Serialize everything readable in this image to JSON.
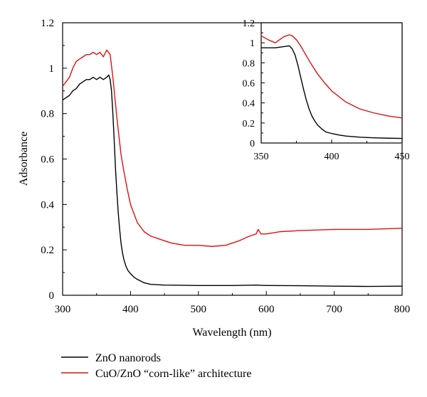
{
  "chart_data": [
    {
      "type": "line",
      "panel": "main",
      "title": "",
      "xlabel": "Wavelength (nm)",
      "ylabel": "Adsorbance",
      "xlim": [
        300,
        800
      ],
      "ylim": [
        0,
        1.2
      ],
      "xticks": [
        "300",
        "400",
        "500",
        "600",
        "700",
        "800"
      ],
      "yticks": [
        "0",
        "0.2",
        "0.4",
        "0.6",
        "0.8",
        "1",
        "1.2"
      ],
      "grid": false,
      "legend_placement": "bottom-left, below plot",
      "series": [
        {
          "name": "ZnO nanorods",
          "color": "#000000",
          "x": [
            300,
            305,
            310,
            315,
            320,
            325,
            330,
            335,
            340,
            345,
            350,
            355,
            360,
            365,
            368,
            370,
            372,
            374,
            376,
            378,
            380,
            382,
            384,
            386,
            388,
            390,
            393,
            396,
            400,
            405,
            410,
            420,
            430,
            450,
            500,
            550,
            585,
            600,
            650,
            700,
            750,
            800
          ],
          "values": [
            0.86,
            0.87,
            0.88,
            0.9,
            0.91,
            0.93,
            0.94,
            0.95,
            0.95,
            0.96,
            0.95,
            0.96,
            0.95,
            0.96,
            0.97,
            0.95,
            0.9,
            0.8,
            0.68,
            0.55,
            0.45,
            0.36,
            0.29,
            0.23,
            0.19,
            0.16,
            0.13,
            0.11,
            0.095,
            0.08,
            0.07,
            0.055,
            0.048,
            0.045,
            0.043,
            0.043,
            0.045,
            0.043,
            0.042,
            0.04,
            0.039,
            0.04
          ]
        },
        {
          "name": "CuO/ZnO “corn-like” architecture",
          "color": "#e01010",
          "x": [
            300,
            305,
            310,
            315,
            320,
            325,
            330,
            335,
            340,
            345,
            350,
            355,
            360,
            365,
            370,
            372,
            374,
            376,
            378,
            380,
            383,
            386,
            390,
            395,
            400,
            410,
            420,
            430,
            440,
            450,
            460,
            480,
            500,
            520,
            540,
            560,
            575,
            585,
            588,
            592,
            600,
            620,
            650,
            700,
            750,
            800
          ],
          "values": [
            0.92,
            0.94,
            0.96,
            1.0,
            1.03,
            1.04,
            1.05,
            1.06,
            1.06,
            1.07,
            1.06,
            1.07,
            1.05,
            1.08,
            1.06,
            1.01,
            0.96,
            0.9,
            0.84,
            0.78,
            0.7,
            0.62,
            0.55,
            0.47,
            0.4,
            0.32,
            0.28,
            0.26,
            0.25,
            0.24,
            0.23,
            0.22,
            0.22,
            0.215,
            0.22,
            0.24,
            0.26,
            0.27,
            0.29,
            0.27,
            0.27,
            0.28,
            0.285,
            0.29,
            0.29,
            0.295
          ]
        }
      ]
    },
    {
      "type": "line",
      "panel": "inset",
      "title": "",
      "xlabel": "",
      "ylabel": "",
      "xlim": [
        350,
        450
      ],
      "ylim": [
        0,
        1.2
      ],
      "xticks": [
        "350",
        "400",
        "450"
      ],
      "yticks": [
        "0",
        "0.2",
        "0.4",
        "0.6",
        "0.8",
        "1",
        "1.2"
      ],
      "grid": false,
      "series": [
        {
          "color": "#000000",
          "x": [
            350,
            355,
            360,
            365,
            370,
            372,
            374,
            376,
            378,
            380,
            382,
            384,
            386,
            388,
            390,
            393,
            396,
            400,
            405,
            410,
            420,
            430,
            440,
            450
          ],
          "values": [
            0.95,
            0.95,
            0.95,
            0.96,
            0.97,
            0.94,
            0.88,
            0.78,
            0.66,
            0.54,
            0.43,
            0.34,
            0.27,
            0.22,
            0.18,
            0.14,
            0.11,
            0.095,
            0.08,
            0.07,
            0.058,
            0.052,
            0.048,
            0.046
          ]
        },
        {
          "color": "#e01010",
          "x": [
            350,
            355,
            360,
            363,
            366,
            370,
            372,
            375,
            378,
            380,
            385,
            390,
            395,
            400,
            410,
            420,
            430,
            440,
            450
          ],
          "values": [
            1.07,
            1.03,
            1.0,
            1.03,
            1.06,
            1.08,
            1.07,
            1.03,
            0.97,
            0.92,
            0.8,
            0.69,
            0.6,
            0.52,
            0.41,
            0.34,
            0.3,
            0.27,
            0.25
          ]
        }
      ]
    }
  ],
  "legend": {
    "items": [
      {
        "label": "ZnO nanorods",
        "color": "#000000"
      },
      {
        "label": "CuO/ZnO “corn-like” architecture",
        "color": "#e01010"
      }
    ]
  }
}
